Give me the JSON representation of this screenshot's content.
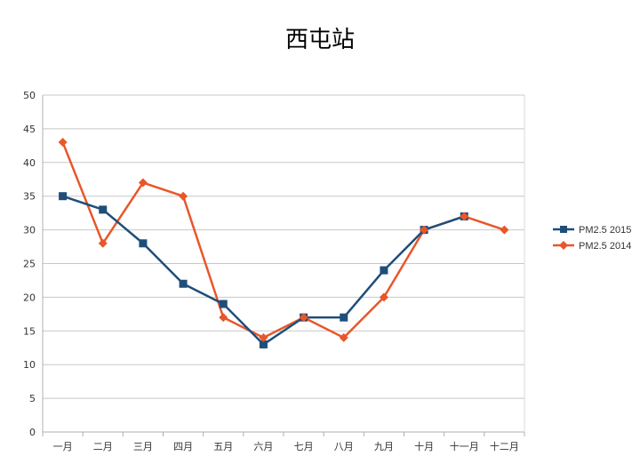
{
  "chart_data": {
    "type": "line",
    "title": "西屯站",
    "xlabel": "",
    "ylabel": "",
    "categories": [
      "一月",
      "二月",
      "三月",
      "四月",
      "五月",
      "六月",
      "七月",
      "八月",
      "九月",
      "十月",
      "十一月",
      "十二月"
    ],
    "ylim": [
      0,
      50
    ],
    "yticks": [
      0,
      5,
      10,
      15,
      20,
      25,
      30,
      35,
      40,
      45,
      50
    ],
    "grid": true,
    "legend_position": "right",
    "series": [
      {
        "name": "PM2.5 2015",
        "color": "#1f4e79",
        "marker": "square",
        "values": [
          35,
          33,
          28,
          22,
          19,
          13,
          17,
          17,
          24,
          30,
          32,
          null
        ]
      },
      {
        "name": "PM2.5 2014",
        "color": "#e8572a",
        "marker": "diamond",
        "values": [
          43,
          28,
          37,
          35,
          17,
          14,
          17,
          14,
          20,
          30,
          32,
          30
        ]
      }
    ]
  }
}
